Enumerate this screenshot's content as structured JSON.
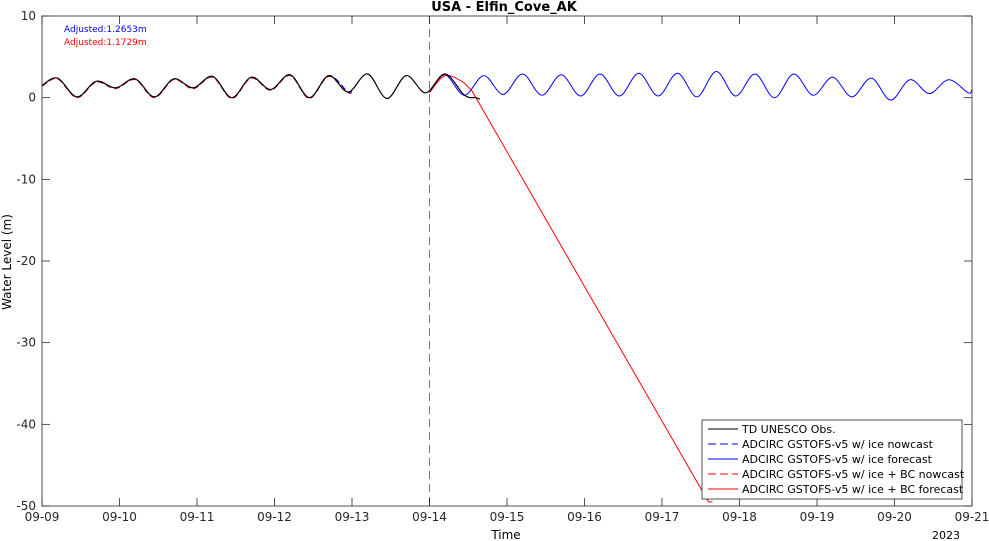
{
  "chart_data": {
    "type": "line",
    "title": "USA - Elfin_Cove_AK",
    "xlabel": "Time",
    "ylabel": "Water Level (m)",
    "year_label": "2023",
    "xlim": [
      "2023-09-09",
      "2023-09-21"
    ],
    "ylim": [
      -50,
      10
    ],
    "yticks": [
      10,
      0,
      -10,
      -20,
      -30,
      -40,
      -50
    ],
    "xticks": [
      "09-09",
      "09-10",
      "09-11",
      "09-12",
      "09-13",
      "09-14",
      "09-15",
      "09-16",
      "09-17",
      "09-18",
      "09-19",
      "09-20",
      "09-21"
    ],
    "grid": false,
    "vline_x": "2023-09-14",
    "legend_position": "bottom-right",
    "annotations": [
      {
        "text": "Adjusted:1.2653m",
        "color": "#0000ff"
      },
      {
        "text": "Adjusted:1.1729m",
        "color": "#ff0000"
      }
    ],
    "series": [
      {
        "name": "TD UNESCO Obs.",
        "color": "#000000",
        "dash": "solid",
        "x_range": [
          "2023-09-09",
          "2023-09-14 15:00"
        ],
        "points": [
          [
            0.0,
            1.5
          ],
          [
            0.2,
            2.4
          ],
          [
            0.45,
            0.1
          ],
          [
            0.7,
            2.0
          ],
          [
            0.95,
            1.2
          ],
          [
            1.2,
            2.3
          ],
          [
            1.45,
            0.1
          ],
          [
            1.7,
            2.3
          ],
          [
            1.95,
            1.2
          ],
          [
            2.2,
            2.6
          ],
          [
            2.45,
            0.0
          ],
          [
            2.7,
            2.5
          ],
          [
            2.95,
            1.0
          ],
          [
            3.2,
            2.8
          ],
          [
            3.45,
            0.0
          ],
          [
            3.7,
            2.7
          ],
          [
            3.95,
            0.7
          ],
          [
            4.2,
            2.9
          ],
          [
            4.45,
            -0.1
          ],
          [
            4.7,
            2.7
          ],
          [
            4.95,
            0.6
          ],
          [
            5.2,
            2.9
          ],
          [
            5.45,
            0.3
          ],
          [
            5.6,
            0.0
          ],
          [
            5.65,
            -0.2
          ]
        ]
      },
      {
        "name": "ADCIRC GSTOFS-v5 w/ ice nowcast",
        "color": "#0000ff",
        "dash": "dashed",
        "x_range": [
          "2023-09-09",
          "2023-09-14"
        ],
        "points": [
          [
            0.0,
            1.5
          ],
          [
            0.2,
            2.4
          ],
          [
            0.45,
            0.1
          ],
          [
            0.7,
            2.0
          ],
          [
            0.95,
            1.2
          ],
          [
            1.2,
            2.3
          ],
          [
            1.45,
            0.1
          ],
          [
            1.7,
            2.3
          ],
          [
            1.95,
            1.2
          ],
          [
            2.2,
            2.6
          ],
          [
            2.45,
            0.0
          ],
          [
            2.7,
            2.5
          ],
          [
            2.95,
            1.0
          ],
          [
            3.2,
            2.8
          ],
          [
            3.45,
            0.0
          ],
          [
            3.7,
            2.7
          ],
          [
            3.95,
            0.7
          ],
          [
            4.0,
            1.0
          ]
        ]
      },
      {
        "name": "ADCIRC GSTOFS-v5 w/ ice forecast",
        "color": "#0000ff",
        "dash": "solid",
        "x_range": [
          "2023-09-14",
          "2023-09-21"
        ],
        "points": [
          [
            5.0,
            0.7
          ],
          [
            5.2,
            2.8
          ],
          [
            5.45,
            0.3
          ],
          [
            5.7,
            2.7
          ],
          [
            5.95,
            0.4
          ],
          [
            6.2,
            2.9
          ],
          [
            6.45,
            0.3
          ],
          [
            6.7,
            2.8
          ],
          [
            6.95,
            0.2
          ],
          [
            7.2,
            2.9
          ],
          [
            7.45,
            0.2
          ],
          [
            7.7,
            3.0
          ],
          [
            7.95,
            0.2
          ],
          [
            8.2,
            3.0
          ],
          [
            8.45,
            0.1
          ],
          [
            8.7,
            3.2
          ],
          [
            8.95,
            0.2
          ],
          [
            9.2,
            2.9
          ],
          [
            9.45,
            0.0
          ],
          [
            9.7,
            2.9
          ],
          [
            9.95,
            0.3
          ],
          [
            10.2,
            2.5
          ],
          [
            10.45,
            0.1
          ],
          [
            10.7,
            2.4
          ],
          [
            10.95,
            -0.3
          ],
          [
            11.2,
            2.2
          ],
          [
            11.45,
            0.5
          ],
          [
            11.7,
            2.2
          ],
          [
            11.95,
            0.6
          ],
          [
            12.0,
            1.0
          ]
        ]
      },
      {
        "name": "ADCIRC GSTOFS-v5 w/ ice + BC nowcast",
        "color": "#ff0000",
        "dash": "dashed",
        "x_range": [
          "2023-09-09",
          "2023-09-14"
        ],
        "points": [
          [
            0.0,
            1.4
          ],
          [
            0.2,
            2.3
          ],
          [
            0.45,
            0.0
          ],
          [
            0.7,
            1.9
          ],
          [
            0.95,
            1.1
          ],
          [
            1.2,
            2.2
          ],
          [
            1.45,
            0.0
          ],
          [
            1.7,
            2.2
          ],
          [
            1.95,
            1.1
          ],
          [
            2.2,
            2.5
          ],
          [
            2.45,
            -0.1
          ],
          [
            2.7,
            2.4
          ],
          [
            2.95,
            0.9
          ],
          [
            3.2,
            2.7
          ],
          [
            3.45,
            -0.1
          ],
          [
            3.7,
            2.6
          ],
          [
            3.95,
            0.6
          ],
          [
            4.0,
            0.9
          ]
        ]
      },
      {
        "name": "ADCIRC GSTOFS-v5 w/ ice + BC forecast",
        "color": "#ff0000",
        "dash": "solid",
        "x_range": [
          "2023-09-14",
          "2023-09-17 15:00"
        ],
        "points": [
          [
            5.0,
            0.6
          ],
          [
            5.2,
            2.7
          ],
          [
            5.45,
            1.8
          ],
          [
            5.55,
            0.8
          ],
          [
            8.6,
            -49.5
          ],
          [
            8.65,
            -49.5
          ]
        ]
      }
    ]
  }
}
